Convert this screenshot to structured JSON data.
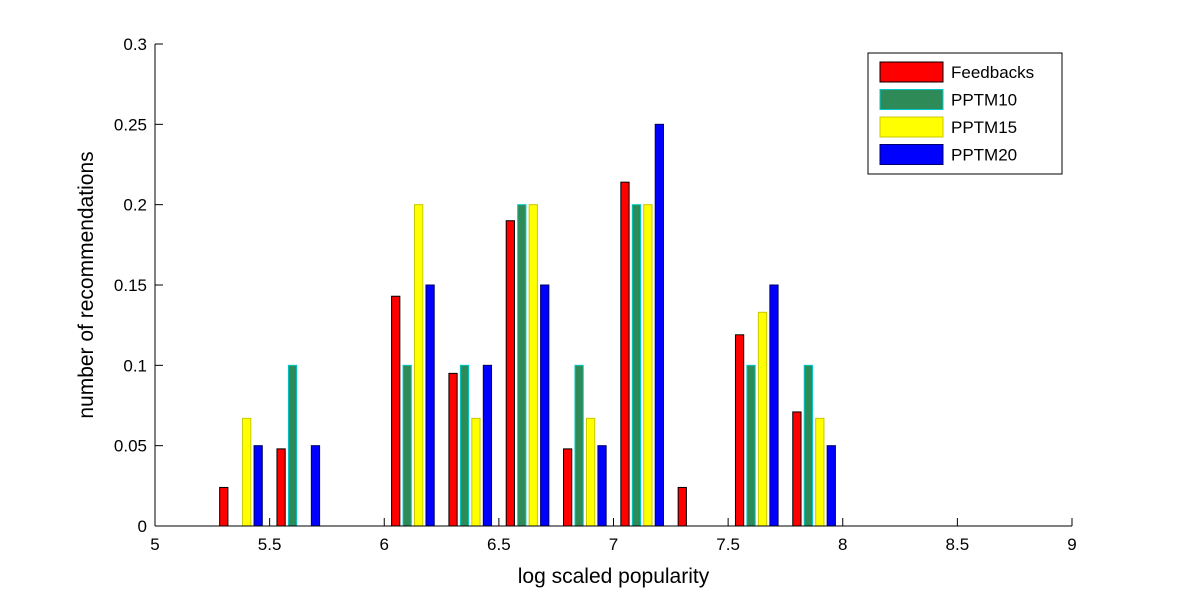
{
  "chart_data": {
    "type": "bar",
    "xlabel": "log scaled popularity",
    "ylabel": "number of recommendations",
    "xlim": [
      5,
      9
    ],
    "ylim": [
      0,
      0.3
    ],
    "x_ticks": [
      5,
      5.5,
      6,
      6.5,
      7,
      7.5,
      8,
      8.5,
      9
    ],
    "x_tick_labels": [
      "5",
      "5.5",
      "6",
      "6.5",
      "7",
      "7.5",
      "8",
      "8.5",
      "9"
    ],
    "y_ticks": [
      0,
      0.05,
      0.1,
      0.15,
      0.2,
      0.25,
      0.3
    ],
    "y_tick_labels": [
      "0",
      "0.05",
      "0.1",
      "0.15",
      "0.2",
      "0.25",
      "0.3"
    ],
    "grid": false,
    "legend_position": "top-right",
    "bin_centers": [
      5.125,
      5.375,
      5.625,
      5.875,
      6.125,
      6.375,
      6.625,
      6.875,
      7.125,
      7.375,
      7.625,
      7.875,
      8.125,
      8.375,
      8.625,
      8.875
    ],
    "series": [
      {
        "name": "Feedbacks",
        "color": "#ff0000",
        "edge": "#000000",
        "values": [
          0,
          0.024,
          0.048,
          0,
          0.143,
          0.095,
          0.19,
          0.048,
          0.214,
          0.024,
          0.119,
          0.071,
          0,
          0,
          0,
          0
        ]
      },
      {
        "name": "PPTM10",
        "color": "#2e8b57",
        "edge": "#00c8c8",
        "values": [
          0,
          0,
          0.1,
          0,
          0.1,
          0.1,
          0.2,
          0.1,
          0.2,
          0,
          0.1,
          0.1,
          0,
          0,
          0,
          0
        ]
      },
      {
        "name": "PPTM15",
        "color": "#ffff00",
        "edge": "#c8c800",
        "values": [
          0,
          0.067,
          0,
          0,
          0.2,
          0.067,
          0.2,
          0.067,
          0.2,
          0,
          0.133,
          0.067,
          0,
          0,
          0,
          0
        ]
      },
      {
        "name": "PPTM20",
        "color": "#0000ff",
        "edge": "#000066",
        "values": [
          0,
          0.05,
          0.05,
          0,
          0.15,
          0.1,
          0.15,
          0.05,
          0.25,
          0,
          0.15,
          0.05,
          0,
          0,
          0,
          0
        ]
      }
    ]
  }
}
